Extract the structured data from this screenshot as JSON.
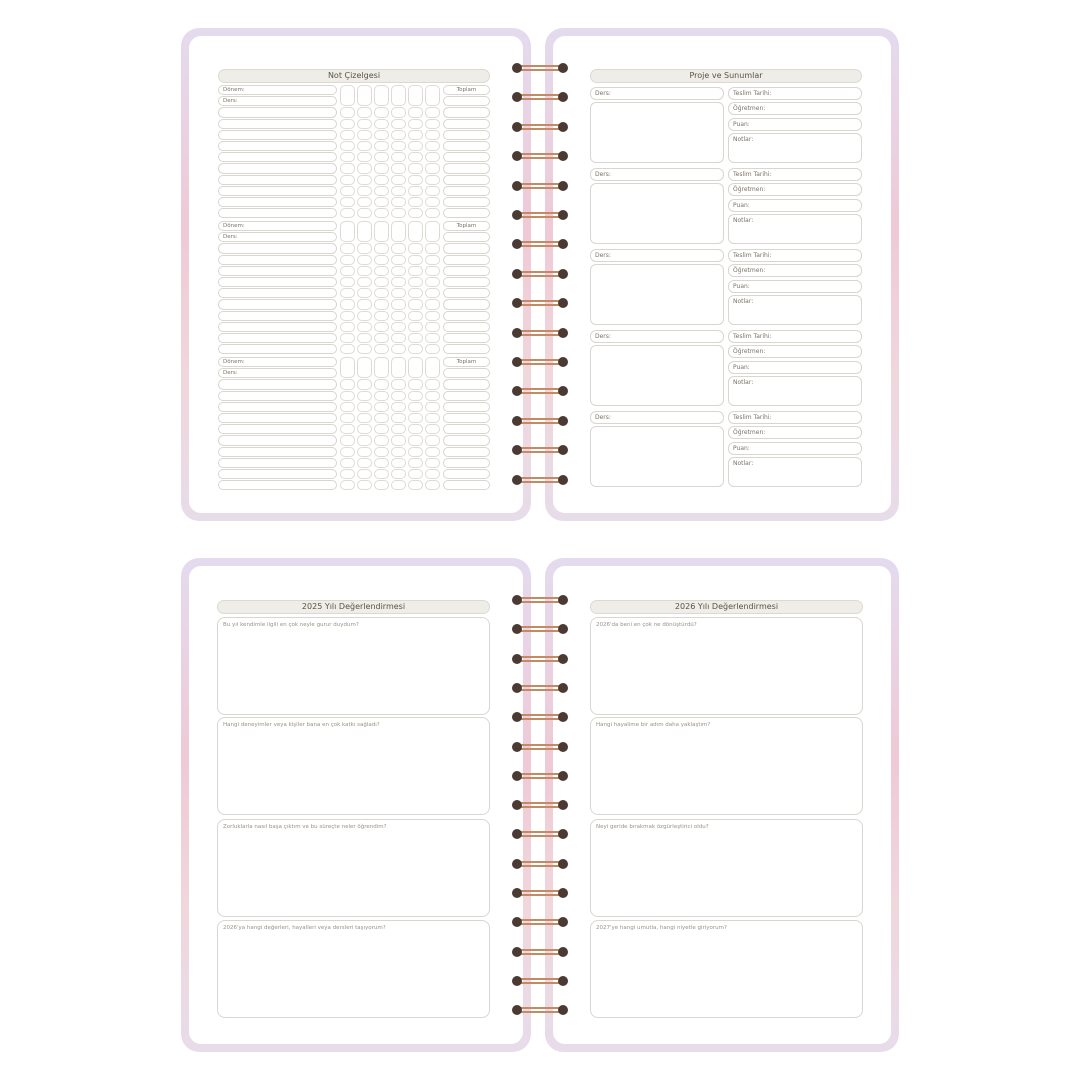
{
  "grade_sheet": {
    "title": "Not Çizelgesi",
    "term_label": "Dönem:",
    "course_label": "Ders:",
    "total_label": "Toplam",
    "sections": 3
  },
  "projects": {
    "title": "Proje ve Sunumlar",
    "course_label": "Ders:",
    "due_label": "Teslim Tarihi:",
    "teacher_label": "Öğretmen:",
    "score_label": "Puan:",
    "notes_label": "Notlar:",
    "blocks": 5
  },
  "review_2025": {
    "title": "2025 Yılı Değerlendirmesi",
    "questions": [
      "Bu yıl kendimle ilgili en çok neyle gurur duydum?",
      "Hangi deneyimler veya kişiler bana en çok katkı sağladı?",
      "Zorluklarla nasıl başa çıktım ve bu süreçte neler öğrendim?",
      "2026'ya hangi değerleri, hayalleri veya dersleri taşıyorum?"
    ]
  },
  "review_2026": {
    "title": "2026 Yılı Değerlendirmesi",
    "questions": [
      "2026'da beni en çok ne dönüştürdü?",
      "Hangi hayalime bir adım daha yaklaştım?",
      "Neyi geride bırakmak özgürleştirici oldu?",
      "2027'ye hangi umutla, hangi niyetle giriyorum?"
    ]
  },
  "colors": {
    "ring": "#c48a64",
    "hole": "#4a3a33",
    "header_bg": "#efede8",
    "cover": "#efc9d6"
  }
}
